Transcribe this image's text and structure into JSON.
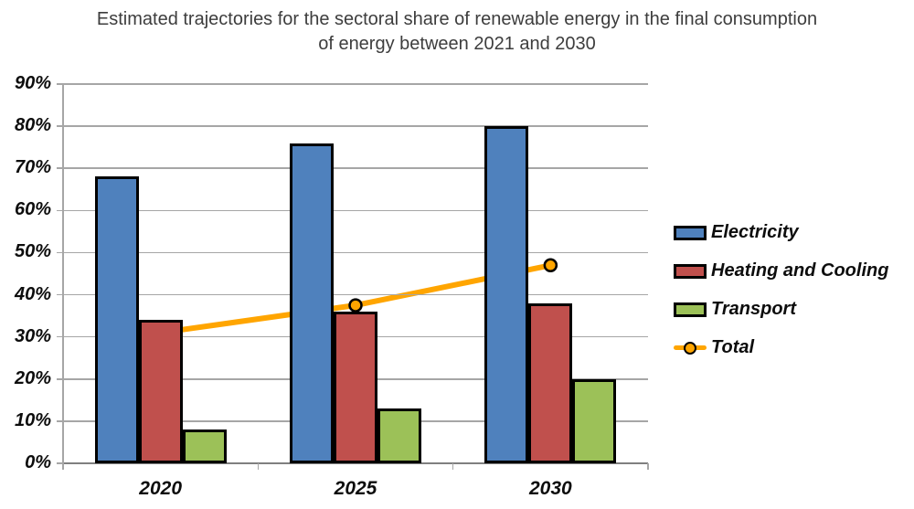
{
  "title": "Estimated trajectories for the sectoral share of renewable energy in the final consumption of energy between 2021 and 2030",
  "chart_data": {
    "type": "bar",
    "subtype": "grouped bars with line overlay",
    "title": "Estimated trajectories for the sectoral share of renewable energy in the final consumption of energy between 2021 and 2030",
    "categories": [
      "2020",
      "2025",
      "2030"
    ],
    "series": [
      {
        "name": "Electricity",
        "type": "bar",
        "color": "#4F81BD",
        "values": [
          68,
          76,
          80
        ]
      },
      {
        "name": "Heating and Cooling",
        "type": "bar",
        "color": "#C0504D",
        "values": [
          34,
          36,
          38
        ]
      },
      {
        "name": "Transport",
        "type": "bar",
        "color": "#9CC158",
        "values": [
          8,
          13,
          20
        ]
      },
      {
        "name": "Total",
        "type": "line",
        "color": "#FFA500",
        "values": [
          31,
          37.5,
          47
        ]
      }
    ],
    "xlabel": "",
    "ylabel": "",
    "ylim": [
      0,
      90
    ],
    "ytick_step": 10,
    "ytick_labels": [
      "0%",
      "10%",
      "20%",
      "30%",
      "40%",
      "50%",
      "60%",
      "70%",
      "80%",
      "90%"
    ],
    "grid": true,
    "grid_color": "#a6a6a6",
    "legend_position": "right",
    "line_marker": "circle"
  }
}
